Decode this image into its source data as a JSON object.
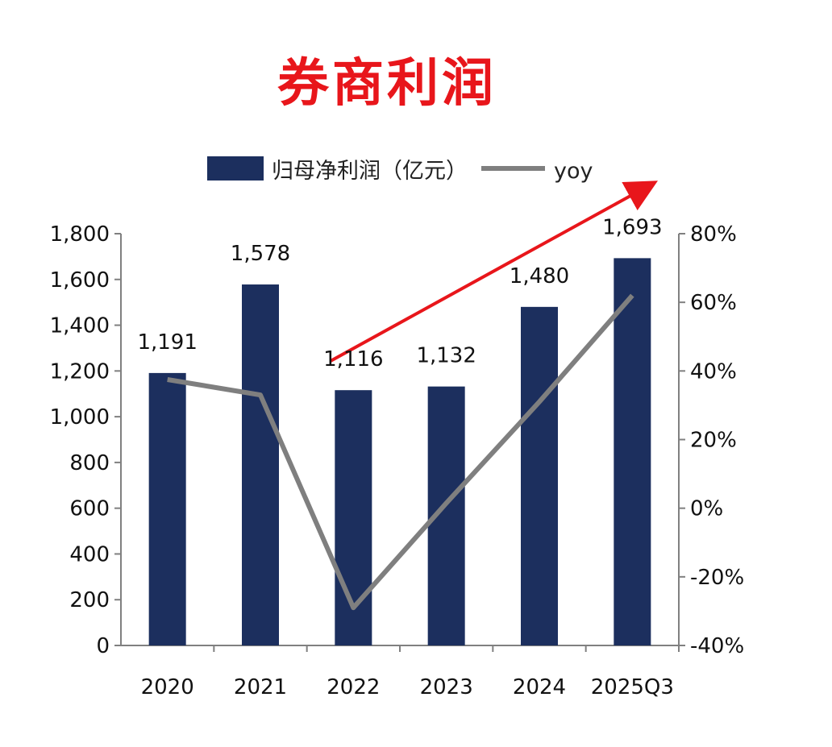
{
  "title": "券商利润",
  "colors": {
    "bar": "#1c2f5e",
    "line": "#7f7f7f",
    "arrow": "#e8161b",
    "title": "#e8161b"
  },
  "chart_data": {
    "type": "bar",
    "categories": [
      "2020",
      "2021",
      "2022",
      "2023",
      "2024",
      "2025Q3"
    ],
    "series": [
      {
        "name": "归母净利润（亿元）",
        "type": "bar",
        "axis": "left",
        "values": [
          1191,
          1578,
          1116,
          1132,
          1480,
          1693
        ],
        "labels": [
          "1,191",
          "1,578",
          "1,116",
          "1,132",
          "1,480",
          "1,693"
        ]
      },
      {
        "name": "yoy",
        "type": "line",
        "axis": "right",
        "values": [
          37.5,
          33,
          -29,
          1.5,
          31,
          62
        ]
      }
    ],
    "y_left": {
      "ylim": [
        0,
        1800
      ],
      "ticks": [
        "0",
        "200",
        "400",
        "600",
        "800",
        "1,000",
        "1,200",
        "1,400",
        "1,600",
        "1,800"
      ]
    },
    "y_right": {
      "ylim": [
        -40,
        80
      ],
      "ticks": [
        "-40%",
        "-20%",
        "0%",
        "20%",
        "40%",
        "60%",
        "80%"
      ]
    },
    "legend": {
      "position": "top-center"
    },
    "grid": false,
    "annotation": "red upward arrow"
  }
}
